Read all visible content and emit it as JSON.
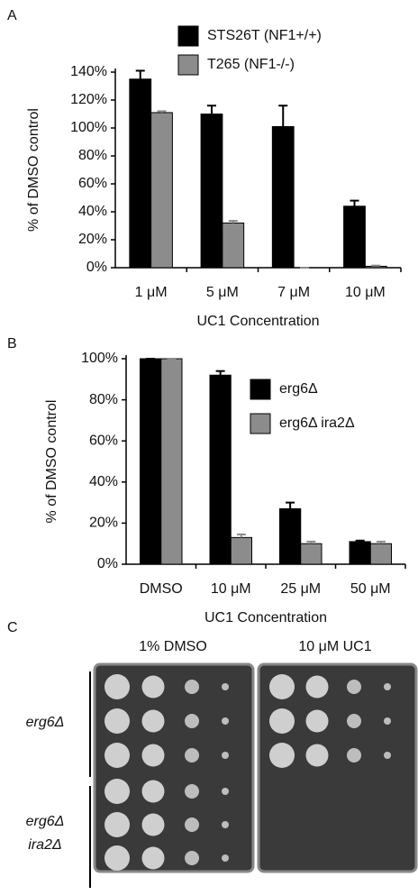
{
  "panel_labels": [
    "A",
    "B",
    "C"
  ],
  "chart_data": [
    {
      "type": "bar",
      "ylabel": "% of DMSO control",
      "xlabel": "UC1 Concentration",
      "categories": [
        "1 μM",
        "5 μM",
        "7 μM",
        "10 μM"
      ],
      "series": [
        {
          "name": "STS26T (NF1+/+)",
          "color": "#000000",
          "values": [
            135,
            110,
            101,
            44
          ],
          "errors": [
            6,
            6,
            15,
            4
          ]
        },
        {
          "name": "T265 (NF1-/-)",
          "color": "#8c8c8c",
          "values": [
            111,
            32,
            0,
            1
          ],
          "errors": [
            1,
            1.5,
            0,
            0.5
          ]
        }
      ],
      "ylim": [
        0,
        140
      ],
      "yticks": [
        {
          "value": 0,
          "label": "0%"
        },
        {
          "value": 20,
          "label": "20%"
        },
        {
          "value": 40,
          "label": "40%"
        },
        {
          "value": 60,
          "label": "60%"
        },
        {
          "value": 80,
          "label": "80%"
        },
        {
          "value": 100,
          "label": "100%"
        },
        {
          "value": 120,
          "label": "120%"
        },
        {
          "value": 140,
          "label": "140%"
        }
      ]
    },
    {
      "type": "bar",
      "ylabel": "% of DMSO control",
      "xlabel": "UC1 Concentration",
      "categories": [
        "DMSO",
        "10 μM",
        "25 μM",
        "50 μM"
      ],
      "series": [
        {
          "name": "erg6Δ",
          "color": "#000000",
          "values": [
            100,
            92,
            27,
            11
          ],
          "errors": [
            0,
            2,
            3,
            0.5
          ]
        },
        {
          "name": "erg6Δ ira2Δ",
          "color": "#8c8c8c",
          "values": [
            100,
            13,
            10,
            10
          ],
          "errors": [
            0,
            1.5,
            1,
            1
          ]
        }
      ],
      "ylim": [
        0,
        100
      ],
      "yticks": [
        {
          "value": 0,
          "label": "0%"
        },
        {
          "value": 20,
          "label": "20%"
        },
        {
          "value": 40,
          "label": "40%"
        },
        {
          "value": 60,
          "label": "60%"
        },
        {
          "value": 80,
          "label": "80%"
        },
        {
          "value": 100,
          "label": "100%"
        }
      ]
    }
  ],
  "panel_c": {
    "conditions": [
      "1% DMSO",
      "10 μM UC1"
    ],
    "strains": [
      {
        "lines": [
          "erg6Δ"
        ]
      },
      {
        "lines": [
          "erg6Δ",
          "ira2Δ"
        ]
      }
    ]
  }
}
